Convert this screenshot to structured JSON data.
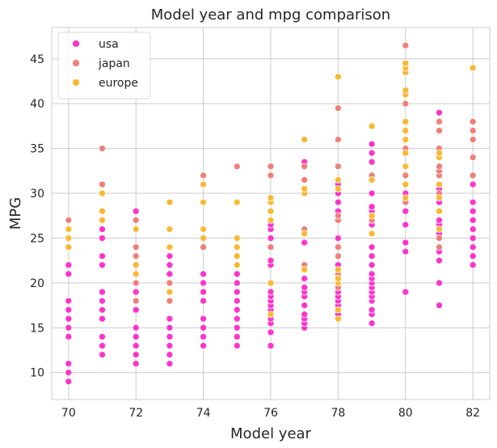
{
  "chart_data": {
    "type": "scatter",
    "title": "Model year and mpg comparison",
    "xlabel": "Model year",
    "ylabel": "MPG",
    "xlim": [
      69.5,
      82.5
    ],
    "ylim": [
      7,
      48.5
    ],
    "xticks": [
      70,
      72,
      74,
      76,
      78,
      80,
      82
    ],
    "yticks": [
      10,
      15,
      20,
      25,
      30,
      35,
      40,
      45
    ],
    "grid": true,
    "legend_position": "top-left",
    "series": [
      {
        "name": "usa",
        "color": "#ff33cc",
        "points": [
          [
            70,
            9
          ],
          [
            70,
            10
          ],
          [
            70,
            11
          ],
          [
            70,
            14
          ],
          [
            70,
            15
          ],
          [
            70,
            16
          ],
          [
            70,
            17
          ],
          [
            70,
            18
          ],
          [
            70,
            21
          ],
          [
            70,
            22
          ],
          [
            71,
            12
          ],
          [
            71,
            13
          ],
          [
            71,
            14
          ],
          [
            71,
            16
          ],
          [
            71,
            17
          ],
          [
            71,
            18
          ],
          [
            71,
            19
          ],
          [
            71,
            22
          ],
          [
            71,
            23
          ],
          [
            71,
            25
          ],
          [
            71,
            26
          ],
          [
            72,
            11
          ],
          [
            72,
            12
          ],
          [
            72,
            13
          ],
          [
            72,
            14
          ],
          [
            72,
            15
          ],
          [
            72,
            17
          ],
          [
            72,
            18
          ],
          [
            72,
            19
          ],
          [
            72,
            20
          ],
          [
            72,
            28
          ],
          [
            73,
            11
          ],
          [
            73,
            12
          ],
          [
            73,
            13
          ],
          [
            73,
            14
          ],
          [
            73,
            15
          ],
          [
            73,
            16
          ],
          [
            73,
            18
          ],
          [
            73,
            19
          ],
          [
            73,
            20
          ],
          [
            73,
            21
          ],
          [
            73,
            22
          ],
          [
            73,
            23
          ],
          [
            74,
            13
          ],
          [
            74,
            14
          ],
          [
            74,
            15
          ],
          [
            74,
            16
          ],
          [
            74,
            18
          ],
          [
            74,
            19
          ],
          [
            74,
            20
          ],
          [
            74,
            21
          ],
          [
            75,
            13
          ],
          [
            75,
            14
          ],
          [
            75,
            15
          ],
          [
            75,
            16
          ],
          [
            75,
            17
          ],
          [
            75,
            18
          ],
          [
            75,
            19
          ],
          [
            75,
            20
          ],
          [
            75,
            21
          ],
          [
            76,
            13
          ],
          [
            76,
            14.5
          ],
          [
            76,
            15.5
          ],
          [
            76,
            16
          ],
          [
            76,
            16.5
          ],
          [
            76,
            17
          ],
          [
            76,
            17.5
          ],
          [
            76,
            18
          ],
          [
            76,
            18.5
          ],
          [
            76,
            19
          ],
          [
            76,
            20
          ],
          [
            76,
            22
          ],
          [
            76,
            22.5
          ],
          [
            76,
            24
          ],
          [
            76,
            25
          ],
          [
            76,
            26
          ],
          [
            76,
            26.5
          ],
          [
            76,
            27
          ],
          [
            77,
            15
          ],
          [
            77,
            15.5
          ],
          [
            77,
            16
          ],
          [
            77,
            16.5
          ],
          [
            77,
            17.5
          ],
          [
            77,
            18.5
          ],
          [
            77,
            19
          ],
          [
            77,
            19.5
          ],
          [
            77,
            20.5
          ],
          [
            77,
            21.5
          ],
          [
            77,
            24.5
          ],
          [
            77,
            25.5
          ],
          [
            77,
            30
          ],
          [
            77,
            33.5
          ],
          [
            78,
            16.5
          ],
          [
            78,
            17.5
          ],
          [
            78,
            18
          ],
          [
            78,
            18.5
          ],
          [
            78,
            19
          ],
          [
            78,
            19.5
          ],
          [
            78,
            20
          ],
          [
            78,
            20.5
          ],
          [
            78,
            21
          ],
          [
            78,
            21.5
          ],
          [
            78,
            22
          ],
          [
            78,
            23
          ],
          [
            78,
            25
          ],
          [
            78,
            27
          ],
          [
            78,
            28
          ],
          [
            78,
            29
          ],
          [
            78,
            30
          ],
          [
            78,
            31
          ],
          [
            79,
            15.5
          ],
          [
            79,
            16.5
          ],
          [
            79,
            17
          ],
          [
            79,
            18
          ],
          [
            79,
            18.5
          ],
          [
            79,
            19
          ],
          [
            79,
            19.5
          ],
          [
            79,
            20
          ],
          [
            79,
            20.5
          ],
          [
            79,
            21
          ],
          [
            79,
            22
          ],
          [
            79,
            23
          ],
          [
            79,
            24
          ],
          [
            79,
            26.5
          ],
          [
            79,
            27
          ],
          [
            79,
            28
          ],
          [
            79,
            28.5
          ],
          [
            79,
            30
          ],
          [
            79,
            31.5
          ],
          [
            79,
            33.5
          ],
          [
            79,
            34.5
          ],
          [
            79,
            35.5
          ],
          [
            80,
            19
          ],
          [
            80,
            23.5
          ],
          [
            80,
            24.5
          ],
          [
            80,
            26.5
          ],
          [
            80,
            28
          ],
          [
            80,
            30
          ],
          [
            80,
            32
          ],
          [
            81,
            17.5
          ],
          [
            81,
            20
          ],
          [
            81,
            22.5
          ],
          [
            81,
            23.5
          ],
          [
            81,
            25
          ],
          [
            81,
            25.5
          ],
          [
            81,
            26.5
          ],
          [
            81,
            27
          ],
          [
            81,
            28
          ],
          [
            81,
            29
          ],
          [
            81,
            30.5
          ],
          [
            81,
            31
          ],
          [
            81,
            32
          ],
          [
            81,
            33
          ],
          [
            81,
            34
          ],
          [
            81,
            35
          ],
          [
            81,
            37
          ],
          [
            81,
            39
          ],
          [
            82,
            22
          ],
          [
            82,
            23
          ],
          [
            82,
            24
          ],
          [
            82,
            25
          ],
          [
            82,
            26
          ],
          [
            82,
            27
          ],
          [
            82,
            28
          ],
          [
            82,
            29
          ],
          [
            82,
            31
          ],
          [
            82,
            32
          ],
          [
            82,
            36
          ],
          [
            82,
            38
          ]
        ]
      },
      {
        "name": "japan",
        "color": "#f07f7a",
        "points": [
          [
            70,
            24
          ],
          [
            70,
            27
          ],
          [
            71,
            31
          ],
          [
            71,
            35
          ],
          [
            72,
            18
          ],
          [
            72,
            20
          ],
          [
            72,
            22
          ],
          [
            72,
            23
          ],
          [
            72,
            24
          ],
          [
            72,
            27
          ],
          [
            73,
            18
          ],
          [
            73,
            20
          ],
          [
            74,
            24
          ],
          [
            74,
            26
          ],
          [
            74,
            29
          ],
          [
            74,
            31
          ],
          [
            74,
            32
          ],
          [
            75,
            24
          ],
          [
            75,
            33
          ],
          [
            76,
            24
          ],
          [
            76,
            28
          ],
          [
            76,
            32
          ],
          [
            76,
            33
          ],
          [
            77,
            21.5
          ],
          [
            77,
            22
          ],
          [
            77,
            26
          ],
          [
            77,
            31.5
          ],
          [
            77,
            33
          ],
          [
            78,
            19.5
          ],
          [
            78,
            21
          ],
          [
            78,
            23
          ],
          [
            78,
            24
          ],
          [
            78,
            27
          ],
          [
            78,
            27.5
          ],
          [
            78,
            33
          ],
          [
            78,
            36
          ],
          [
            78,
            39.5
          ],
          [
            79,
            27
          ],
          [
            79,
            32
          ],
          [
            80,
            29
          ],
          [
            80,
            32
          ],
          [
            80,
            33
          ],
          [
            80,
            35
          ],
          [
            80,
            37
          ],
          [
            80,
            38
          ],
          [
            80,
            40
          ],
          [
            80,
            44.5
          ],
          [
            80,
            46.5
          ],
          [
            81,
            24
          ],
          [
            81,
            25
          ],
          [
            81,
            30
          ],
          [
            81,
            32
          ],
          [
            81,
            32.5
          ],
          [
            81,
            33
          ],
          [
            81,
            34
          ],
          [
            81,
            35
          ],
          [
            81,
            37
          ],
          [
            81,
            38
          ],
          [
            82,
            32
          ],
          [
            82,
            34
          ],
          [
            82,
            36
          ],
          [
            82,
            37
          ],
          [
            82,
            38
          ]
        ]
      },
      {
        "name": "europe",
        "color": "#f9b934",
        "points": [
          [
            70,
            24
          ],
          [
            70,
            25
          ],
          [
            70,
            26
          ],
          [
            71,
            27
          ],
          [
            71,
            28
          ],
          [
            71,
            30
          ],
          [
            72,
            21
          ],
          [
            72,
            22
          ],
          [
            72,
            26
          ],
          [
            73,
            19
          ],
          [
            73,
            24
          ],
          [
            73,
            26
          ],
          [
            73,
            29
          ],
          [
            74,
            25
          ],
          [
            74,
            26
          ],
          [
            74,
            29
          ],
          [
            74,
            31
          ],
          [
            75,
            22
          ],
          [
            75,
            23
          ],
          [
            75,
            24
          ],
          [
            75,
            25
          ],
          [
            75,
            29
          ],
          [
            76,
            16.5
          ],
          [
            76,
            20
          ],
          [
            76,
            27
          ],
          [
            76,
            28
          ],
          [
            76,
            29
          ],
          [
            76,
            29.5
          ],
          [
            77,
            21.5
          ],
          [
            77,
            25.5
          ],
          [
            77,
            30
          ],
          [
            77,
            30.5
          ],
          [
            77,
            36
          ],
          [
            78,
            16
          ],
          [
            78,
            17
          ],
          [
            78,
            20
          ],
          [
            78,
            20.5
          ],
          [
            78,
            21.5
          ],
          [
            78,
            30.5
          ],
          [
            78,
            31.5
          ],
          [
            78,
            43
          ],
          [
            79,
            25.5
          ],
          [
            79,
            27.5
          ],
          [
            79,
            31.5
          ],
          [
            79,
            37.5
          ],
          [
            80,
            29.5
          ],
          [
            80,
            31
          ],
          [
            80,
            33
          ],
          [
            80,
            34.5
          ],
          [
            80,
            36
          ],
          [
            80,
            37
          ],
          [
            80,
            38
          ],
          [
            80,
            41
          ],
          [
            80,
            41.5
          ],
          [
            80,
            43.5
          ],
          [
            80,
            44
          ],
          [
            80,
            44.5
          ],
          [
            81,
            26
          ],
          [
            81,
            28
          ],
          [
            81,
            29.5
          ],
          [
            81,
            31
          ],
          [
            81,
            34
          ],
          [
            81,
            34.5
          ],
          [
            82,
            44
          ]
        ]
      }
    ]
  }
}
